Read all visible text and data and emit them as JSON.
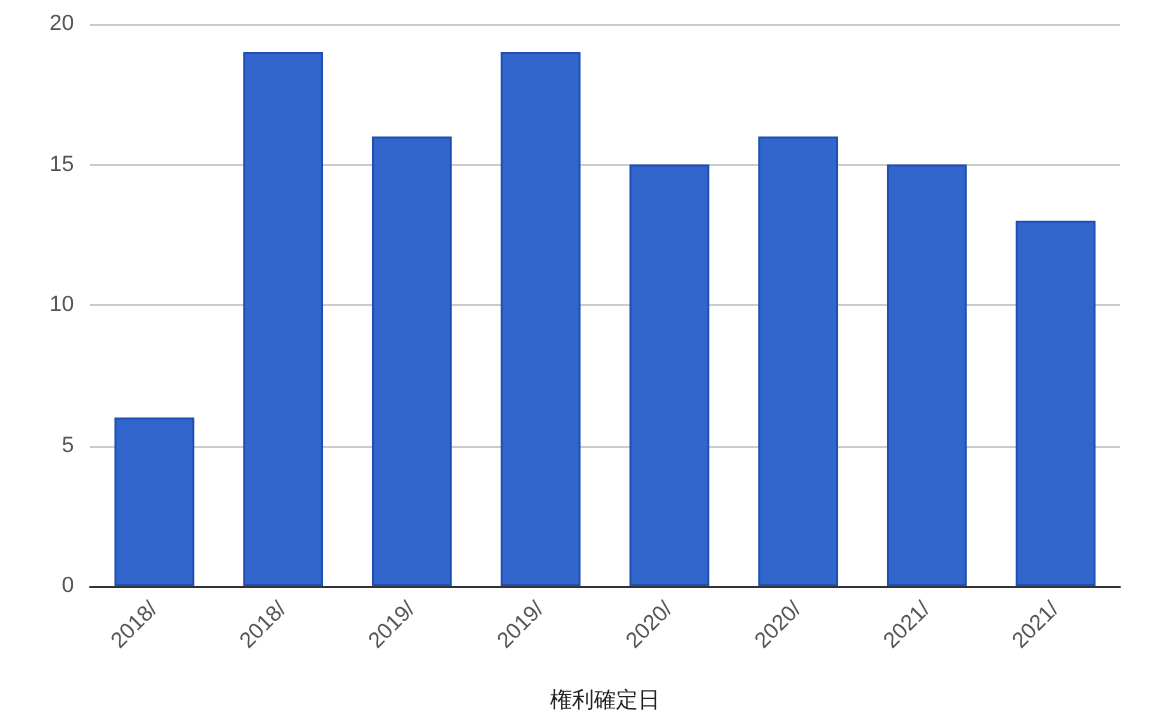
{
  "chart_data": {
    "type": "bar",
    "xlabel": "権利確定日",
    "categories": [
      "2018/",
      "2018/",
      "2019/",
      "2019/",
      "2020/",
      "2020/",
      "2021/",
      "2021/"
    ],
    "values": [
      6,
      19,
      16,
      19,
      15,
      16,
      15,
      13
    ],
    "color": "#3366cc",
    "ylim": [
      0,
      20
    ],
    "yticks": [
      0,
      5,
      10,
      15,
      20
    ],
    "grid": "y"
  }
}
